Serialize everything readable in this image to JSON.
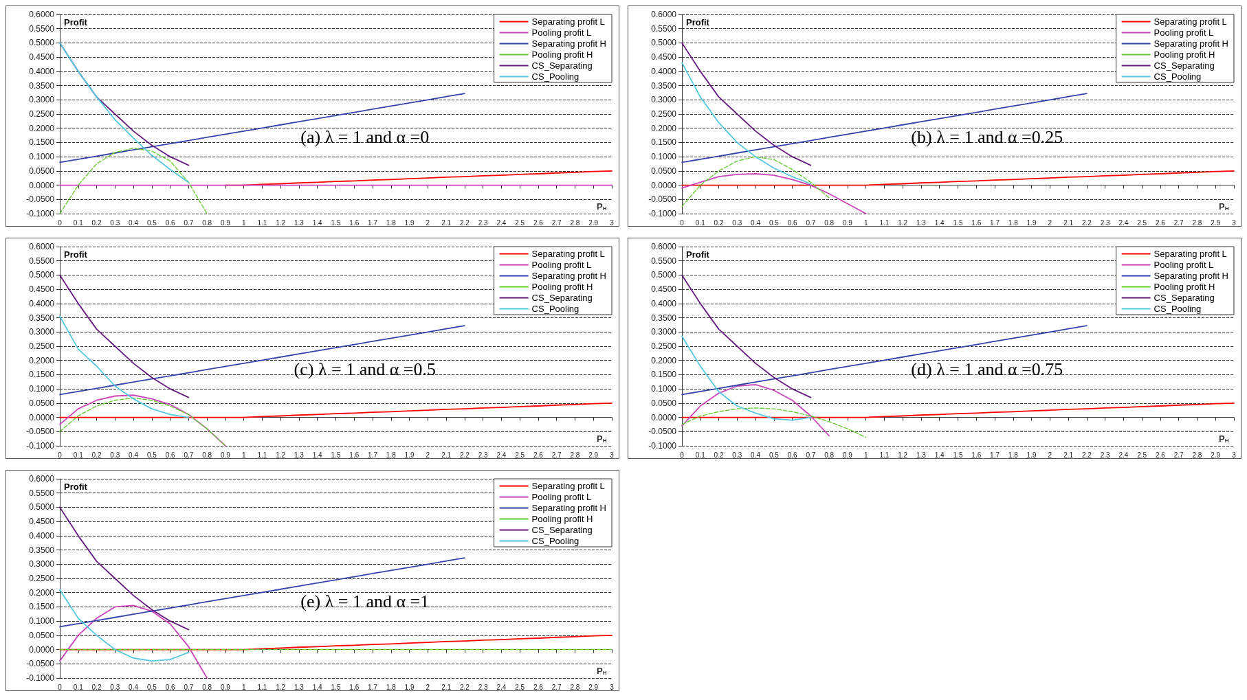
{
  "chart_data": [
    {
      "type": "line",
      "title": "(a) λ = 1 and α =0",
      "xlabel": "P$_{H}$",
      "ylabel": "Profit",
      "grid": "y",
      "legend": "top right",
      "marker": "none",
      "ylim": [
        -0.1,
        0.6
      ],
      "yticks": [
        {
          "value": -0.1,
          "label": "-0.1000"
        },
        {
          "value": -0.05,
          "label": "-0.0500"
        },
        {
          "value": 0,
          "label": "0.0000"
        },
        {
          "value": 0.05,
          "label": "0.0500"
        },
        {
          "value": 0.1,
          "label": "0.1000"
        },
        {
          "value": 0.15,
          "label": "0.1500"
        },
        {
          "value": 0.2,
          "label": "0.2000"
        },
        {
          "value": 0.25,
          "label": "0.2500"
        },
        {
          "value": 0.3,
          "label": "0.3000"
        },
        {
          "value": 0.35,
          "label": "0.3500"
        },
        {
          "value": 0.4,
          "label": "0.4000"
        },
        {
          "value": 0.45,
          "label": "0.4500"
        },
        {
          "value": 0.5,
          "label": "0.5000"
        },
        {
          "value": 0.55,
          "label": "0.5500"
        },
        {
          "value": 0.6,
          "label": "0.6000"
        }
      ],
      "categories": [
        "0",
        "0.1",
        "0.2",
        "0.3",
        "0.4",
        "0.5",
        "0.6",
        "0.7",
        "0.8",
        "0.9",
        "1",
        "1.1",
        "1.2",
        "1.3",
        "1.4",
        "1.5",
        "1.6",
        "1.7",
        "1.8",
        "1.9",
        "2",
        "2.1",
        "2.2",
        "2.3",
        "2.4",
        "2.5",
        "2.6",
        "2.7",
        "2.8",
        "2.9",
        "3"
      ],
      "series": [
        {
          "name": "Separating profit L",
          "color": "#ff0000",
          "values": [
            null,
            null,
            null,
            null,
            null,
            null,
            null,
            null,
            null,
            0,
            0,
            0.003,
            0.005,
            0.008,
            0.01,
            0.013,
            0.015,
            0.018,
            0.02,
            0.023,
            0.025,
            0.028,
            0.03,
            0.033,
            0.035,
            0.038,
            0.04,
            0.043,
            0.045,
            0.048,
            0.05
          ]
        },
        {
          "name": "Pooling profit L",
          "color": "#cc44bb",
          "values": [
            0,
            0,
            0,
            0,
            0,
            0,
            0,
            0,
            0,
            0,
            0,
            0,
            0,
            0,
            0,
            0,
            0,
            0,
            0,
            0,
            0,
            0,
            0,
            0,
            0,
            0,
            0,
            0,
            0,
            0,
            0
          ]
        },
        {
          "name": "Separating profit H",
          "color": "#3344aa",
          "values": [
            0.08,
            0.091,
            0.102,
            0.113,
            0.124,
            0.135,
            0.146,
            0.157,
            0.168,
            0.179,
            0.19,
            0.201,
            0.212,
            0.223,
            0.234,
            0.245,
            0.256,
            0.267,
            0.278,
            0.289,
            0.3,
            0.311,
            0.322,
            null,
            null,
            null,
            null,
            null,
            null,
            null,
            null
          ]
        },
        {
          "name": "Pooling profit H",
          "color": "#66cc33",
          "line_style": "dashed",
          "values": [
            -0.1,
            0,
            0.075,
            0.115,
            0.13,
            0.12,
            0.085,
            0.01,
            -0.1,
            null,
            null,
            null,
            null,
            null,
            null,
            null,
            null,
            null,
            null,
            null,
            null,
            null,
            null,
            null,
            null,
            null,
            null,
            null,
            null,
            null,
            null
          ]
        },
        {
          "name": "CS_Separating",
          "color": "#661a80",
          "values": [
            0.5,
            0.4,
            0.31,
            0.25,
            0.19,
            0.14,
            0.1,
            0.07,
            null,
            null,
            null,
            null,
            null,
            null,
            null,
            null,
            null,
            null,
            null,
            null,
            null,
            null,
            null,
            null,
            null,
            null,
            null,
            null,
            null,
            null,
            null
          ]
        },
        {
          "name": "CS_Pooling",
          "color": "#55c8e0",
          "values": [
            0.5,
            0.4,
            0.31,
            0.23,
            0.165,
            0.105,
            0.055,
            0.01,
            null,
            null,
            null,
            null,
            null,
            null,
            null,
            null,
            null,
            null,
            null,
            null,
            null,
            null,
            null,
            null,
            null,
            null,
            null,
            null,
            null,
            null,
            null
          ]
        }
      ]
    },
    {
      "type": "line",
      "title": "(b) λ = 1 and α =0.25",
      "xlabel": "P$_{H}$",
      "ylabel": "Profit",
      "grid": "y",
      "legend": "top right",
      "marker": "none",
      "ylim": [
        -0.1,
        0.6
      ],
      "yticks": [
        {
          "value": -0.1,
          "label": "-0.1000"
        },
        {
          "value": -0.05,
          "label": "-0.0500"
        },
        {
          "value": 0,
          "label": "0.0000"
        },
        {
          "value": 0.05,
          "label": "0.0500"
        },
        {
          "value": 0.1,
          "label": "0.1000"
        },
        {
          "value": 0.15,
          "label": "0.1500"
        },
        {
          "value": 0.2,
          "label": "0.2000"
        },
        {
          "value": 0.25,
          "label": "0.2500"
        },
        {
          "value": 0.3,
          "label": "0.3000"
        },
        {
          "value": 0.35,
          "label": "0.3500"
        },
        {
          "value": 0.4,
          "label": "0.4000"
        },
        {
          "value": 0.45,
          "label": "0.4500"
        },
        {
          "value": 0.5,
          "label": "0.5000"
        },
        {
          "value": 0.55,
          "label": "0.5500"
        },
        {
          "value": 0.6,
          "label": "0.6000"
        }
      ],
      "categories": [
        "0",
        "0.1",
        "0.2",
        "0.3",
        "0.4",
        "0.5",
        "0.6",
        "0.7",
        "0.8",
        "0.9",
        "1",
        "1.1",
        "1.2",
        "1.3",
        "1.4",
        "1.5",
        "1.6",
        "1.7",
        "1.8",
        "1.9",
        "2",
        "2.1",
        "2.2",
        "2.3",
        "2.4",
        "2.5",
        "2.6",
        "2.7",
        "2.8",
        "2.9",
        "3"
      ],
      "series": [
        {
          "name": "Separating profit L",
          "color": "#ff0000",
          "values": [
            0,
            0,
            0,
            0,
            0,
            0,
            0,
            0,
            0,
            0,
            0,
            0.003,
            0.005,
            0.008,
            0.01,
            0.013,
            0.015,
            0.018,
            0.02,
            0.023,
            0.025,
            0.028,
            0.03,
            0.033,
            0.035,
            0.038,
            0.04,
            0.043,
            0.045,
            0.048,
            0.05
          ]
        },
        {
          "name": "Pooling profit L",
          "color": "#cc44bb",
          "values": [
            -0.01,
            0.01,
            0.03,
            0.038,
            0.04,
            0.035,
            0.02,
            0,
            -0.03,
            -0.065,
            -0.1,
            null,
            null,
            null,
            null,
            null,
            null,
            null,
            null,
            null,
            null,
            null,
            null,
            null,
            null,
            null,
            null,
            null,
            null,
            null,
            null
          ]
        },
        {
          "name": "Separating profit H",
          "color": "#3344aa",
          "values": [
            0.08,
            0.091,
            0.102,
            0.113,
            0.124,
            0.135,
            0.146,
            0.157,
            0.168,
            0.179,
            0.19,
            0.201,
            0.212,
            0.223,
            0.234,
            0.245,
            0.256,
            0.267,
            0.278,
            0.289,
            0.3,
            0.311,
            0.322,
            null,
            null,
            null,
            null,
            null,
            null,
            null,
            null
          ]
        },
        {
          "name": "Pooling profit H",
          "color": "#66cc33",
          "line_style": "dashed",
          "values": [
            -0.075,
            0,
            0.05,
            0.085,
            0.1,
            0.09,
            0.055,
            0.01,
            -0.045,
            null,
            null,
            null,
            null,
            null,
            null,
            null,
            null,
            null,
            null,
            null,
            null,
            null,
            null,
            null,
            null,
            null,
            null,
            null,
            null,
            null,
            null
          ]
        },
        {
          "name": "CS_Separating",
          "color": "#661a80",
          "values": [
            0.5,
            0.4,
            0.31,
            0.25,
            0.19,
            0.14,
            0.1,
            0.07,
            null,
            null,
            null,
            null,
            null,
            null,
            null,
            null,
            null,
            null,
            null,
            null,
            null,
            null,
            null,
            null,
            null,
            null,
            null,
            null,
            null,
            null,
            null
          ]
        },
        {
          "name": "CS_Pooling",
          "color": "#55c8e0",
          "values": [
            0.43,
            0.31,
            0.22,
            0.15,
            0.1,
            0.06,
            0.03,
            0.005,
            null,
            null,
            null,
            null,
            null,
            null,
            null,
            null,
            null,
            null,
            null,
            null,
            null,
            null,
            null,
            null,
            null,
            null,
            null,
            null,
            null,
            null,
            null
          ]
        }
      ]
    },
    {
      "type": "line",
      "title": "(c) λ = 1 and α =0.5",
      "xlabel": "P$_{H}$",
      "ylabel": "Profit",
      "grid": "y",
      "legend": "top right",
      "marker": "none",
      "ylim": [
        -0.1,
        0.6
      ],
      "yticks": [
        {
          "value": -0.1,
          "label": "-0.1000"
        },
        {
          "value": -0.05,
          "label": "-0.0500"
        },
        {
          "value": 0,
          "label": "0.0000"
        },
        {
          "value": 0.05,
          "label": "0.0500"
        },
        {
          "value": 0.1,
          "label": "0.1000"
        },
        {
          "value": 0.15,
          "label": "0.1500"
        },
        {
          "value": 0.2,
          "label": "0.2000"
        },
        {
          "value": 0.25,
          "label": "0.2500"
        },
        {
          "value": 0.3,
          "label": "0.3000"
        },
        {
          "value": 0.35,
          "label": "0.3500"
        },
        {
          "value": 0.4,
          "label": "0.4000"
        },
        {
          "value": 0.45,
          "label": "0.4500"
        },
        {
          "value": 0.5,
          "label": "0.5000"
        },
        {
          "value": 0.55,
          "label": "0.5500"
        },
        {
          "value": 0.6,
          "label": "0.6000"
        }
      ],
      "categories": [
        "0",
        "0.1",
        "0.2",
        "0.3",
        "0.4",
        "0.5",
        "0.6",
        "0.7",
        "0.8",
        "0.9",
        "1",
        "1.1",
        "1.2",
        "1.3",
        "1.4",
        "1.5",
        "1.6",
        "1.7",
        "1.8",
        "1.9",
        "2",
        "2.1",
        "2.2",
        "2.3",
        "2.4",
        "2.5",
        "2.6",
        "2.7",
        "2.8",
        "2.9",
        "3"
      ],
      "series": [
        {
          "name": "Separating profit L",
          "color": "#ff0000",
          "values": [
            0,
            0,
            0,
            0,
            0,
            0,
            0,
            0,
            0,
            0,
            0,
            0.003,
            0.005,
            0.008,
            0.01,
            0.013,
            0.015,
            0.018,
            0.02,
            0.023,
            0.025,
            0.028,
            0.03,
            0.033,
            0.035,
            0.038,
            0.04,
            0.043,
            0.045,
            0.048,
            0.05
          ]
        },
        {
          "name": "Pooling profit L",
          "color": "#cc44bb",
          "values": [
            -0.025,
            0.03,
            0.06,
            0.075,
            0.078,
            0.065,
            0.045,
            0.01,
            -0.04,
            -0.1,
            null,
            null,
            null,
            null,
            null,
            null,
            null,
            null,
            null,
            null,
            null,
            null,
            null,
            null,
            null,
            null,
            null,
            null,
            null,
            null,
            null
          ]
        },
        {
          "name": "Separating profit H",
          "color": "#3344aa",
          "values": [
            0.08,
            0.091,
            0.102,
            0.113,
            0.124,
            0.135,
            0.146,
            0.157,
            0.168,
            0.179,
            0.19,
            0.201,
            0.212,
            0.223,
            0.234,
            0.245,
            0.256,
            0.267,
            0.278,
            0.289,
            0.3,
            0.311,
            0.322,
            null,
            null,
            null,
            null,
            null,
            null,
            null,
            null
          ]
        },
        {
          "name": "Pooling profit H",
          "color": "#66cc33",
          "line_style": "dashed",
          "values": [
            -0.05,
            0.005,
            0.04,
            0.06,
            0.068,
            0.06,
            0.04,
            0.01,
            -0.04,
            -0.1,
            null,
            null,
            null,
            null,
            null,
            null,
            null,
            null,
            null,
            null,
            null,
            null,
            null,
            null,
            null,
            null,
            null,
            null,
            null,
            null,
            null
          ]
        },
        {
          "name": "CS_Separating",
          "color": "#661a80",
          "values": [
            0.5,
            0.4,
            0.31,
            0.25,
            0.19,
            0.14,
            0.1,
            0.07,
            null,
            null,
            null,
            null,
            null,
            null,
            null,
            null,
            null,
            null,
            null,
            null,
            null,
            null,
            null,
            null,
            null,
            null,
            null,
            null,
            null,
            null,
            null
          ]
        },
        {
          "name": "CS_Pooling",
          "color": "#55c8e0",
          "values": [
            0.355,
            0.24,
            0.18,
            0.11,
            0.065,
            0.03,
            0.01,
            0,
            null,
            null,
            null,
            null,
            null,
            null,
            null,
            null,
            null,
            null,
            null,
            null,
            null,
            null,
            null,
            null,
            null,
            null,
            null,
            null,
            null,
            null,
            null
          ]
        }
      ]
    },
    {
      "type": "line",
      "title": "(d) λ = 1 and α =0.75",
      "xlabel": "P$_{H}$",
      "ylabel": "Profit",
      "grid": "y",
      "legend": "top right",
      "marker": "none",
      "ylim": [
        -0.1,
        0.6
      ],
      "yticks": [
        {
          "value": -0.1,
          "label": "-0.1000"
        },
        {
          "value": -0.05,
          "label": "-0.0500"
        },
        {
          "value": 0,
          "label": "0.0000"
        },
        {
          "value": 0.05,
          "label": "0.0500"
        },
        {
          "value": 0.1,
          "label": "0.1000"
        },
        {
          "value": 0.15,
          "label": "0.1500"
        },
        {
          "value": 0.2,
          "label": "0.2000"
        },
        {
          "value": 0.25,
          "label": "0.2500"
        },
        {
          "value": 0.3,
          "label": "0.3000"
        },
        {
          "value": 0.35,
          "label": "0.3500"
        },
        {
          "value": 0.4,
          "label": "0.4000"
        },
        {
          "value": 0.45,
          "label": "0.4500"
        },
        {
          "value": 0.5,
          "label": "0.5000"
        },
        {
          "value": 0.55,
          "label": "0.5500"
        },
        {
          "value": 0.6,
          "label": "0.6000"
        }
      ],
      "categories": [
        "0",
        "0.1",
        "0.2",
        "0.3",
        "0.4",
        "0.5",
        "0.6",
        "0.7",
        "0.8",
        "0.9",
        "1",
        "1.1",
        "1.2",
        "1.3",
        "1.4",
        "1.5",
        "1.6",
        "1.7",
        "1.8",
        "1.9",
        "2",
        "2.1",
        "2.2",
        "2.3",
        "2.4",
        "2.5",
        "2.6",
        "2.7",
        "2.8",
        "2.9",
        "3"
      ],
      "series": [
        {
          "name": "Separating profit L",
          "color": "#ff0000",
          "values": [
            0,
            0,
            0,
            0,
            0,
            0,
            0,
            0,
            0,
            0,
            0,
            0.003,
            0.005,
            0.008,
            0.01,
            0.013,
            0.015,
            0.018,
            0.02,
            0.023,
            0.025,
            0.028,
            0.03,
            0.033,
            0.035,
            0.038,
            0.04,
            0.043,
            0.045,
            0.048,
            0.05
          ]
        },
        {
          "name": "Pooling profit L",
          "color": "#cc44bb",
          "values": [
            -0.03,
            0.04,
            0.085,
            0.11,
            0.115,
            0.095,
            0.06,
            0.005,
            -0.065,
            null,
            null,
            null,
            null,
            null,
            null,
            null,
            null,
            null,
            null,
            null,
            null,
            null,
            null,
            null,
            null,
            null,
            null,
            null,
            null,
            null,
            null
          ]
        },
        {
          "name": "Separating profit H",
          "color": "#3344aa",
          "values": [
            0.08,
            0.091,
            0.102,
            0.113,
            0.124,
            0.135,
            0.146,
            0.157,
            0.168,
            0.179,
            0.19,
            0.201,
            0.212,
            0.223,
            0.234,
            0.245,
            0.256,
            0.267,
            0.278,
            0.289,
            0.3,
            0.311,
            0.322,
            null,
            null,
            null,
            null,
            null,
            null,
            null,
            null
          ]
        },
        {
          "name": "Pooling profit H",
          "color": "#66cc33",
          "line_style": "dashed",
          "values": [
            -0.025,
            0.005,
            0.02,
            0.03,
            0.033,
            0.03,
            0.02,
            0.005,
            -0.015,
            -0.04,
            -0.07,
            null,
            null,
            null,
            null,
            null,
            null,
            null,
            null,
            null,
            null,
            null,
            null,
            null,
            null,
            null,
            null,
            null,
            null,
            null,
            null
          ]
        },
        {
          "name": "CS_Separating",
          "color": "#661a80",
          "values": [
            0.5,
            0.4,
            0.31,
            0.25,
            0.19,
            0.14,
            0.1,
            0.07,
            null,
            null,
            null,
            null,
            null,
            null,
            null,
            null,
            null,
            null,
            null,
            null,
            null,
            null,
            null,
            null,
            null,
            null,
            null,
            null,
            null,
            null,
            null
          ]
        },
        {
          "name": "CS_Pooling",
          "color": "#55c8e0",
          "values": [
            0.285,
            0.18,
            0.09,
            0.04,
            0.015,
            -0.005,
            -0.01,
            0,
            null,
            null,
            null,
            null,
            null,
            null,
            null,
            null,
            null,
            null,
            null,
            null,
            null,
            null,
            null,
            null,
            null,
            null,
            null,
            null,
            null,
            null,
            null
          ]
        }
      ]
    },
    {
      "type": "line",
      "title": "(e) λ = 1 and α =1",
      "xlabel": "P$_{H}$",
      "ylabel": "Profit",
      "grid": "y",
      "legend": "top right",
      "marker": "none",
      "ylim": [
        -0.1,
        0.6
      ],
      "yticks": [
        {
          "value": -0.1,
          "label": "-0.1000"
        },
        {
          "value": -0.05,
          "label": "-0.0500"
        },
        {
          "value": 0,
          "label": "0.0000"
        },
        {
          "value": 0.05,
          "label": "0.0500"
        },
        {
          "value": 0.1,
          "label": "0.1000"
        },
        {
          "value": 0.15,
          "label": "0.1500"
        },
        {
          "value": 0.2,
          "label": "0.2000"
        },
        {
          "value": 0.25,
          "label": "0.2500"
        },
        {
          "value": 0.3,
          "label": "0.3000"
        },
        {
          "value": 0.35,
          "label": "0.3500"
        },
        {
          "value": 0.4,
          "label": "0.4000"
        },
        {
          "value": 0.45,
          "label": "0.4500"
        },
        {
          "value": 0.5,
          "label": "0.5000"
        },
        {
          "value": 0.55,
          "label": "0.5500"
        },
        {
          "value": 0.6,
          "label": "0.6000"
        }
      ],
      "categories": [
        "0",
        "0.1",
        "0.2",
        "0.3",
        "0.4",
        "0.5",
        "0.6",
        "0.7",
        "0.8",
        "0.9",
        "1",
        "1.1",
        "1.2",
        "1.3",
        "1.4",
        "1.5",
        "1.6",
        "1.7",
        "1.8",
        "1.9",
        "2",
        "2.1",
        "2.2",
        "2.3",
        "2.4",
        "2.5",
        "2.6",
        "2.7",
        "2.8",
        "2.9",
        "3"
      ],
      "series": [
        {
          "name": "Separating profit L",
          "color": "#ff0000",
          "values": [
            0,
            0,
            0,
            0,
            0,
            0,
            0,
            0,
            0,
            0,
            0,
            0.003,
            0.005,
            0.008,
            0.01,
            0.013,
            0.015,
            0.018,
            0.02,
            0.023,
            0.025,
            0.028,
            0.03,
            0.033,
            0.035,
            0.038,
            0.04,
            0.043,
            0.045,
            0.048,
            0.05
          ]
        },
        {
          "name": "Pooling profit L",
          "color": "#cc44bb",
          "values": [
            -0.04,
            0.05,
            0.11,
            0.15,
            0.155,
            0.135,
            0.09,
            0.01,
            -0.1,
            null,
            null,
            null,
            null,
            null,
            null,
            null,
            null,
            null,
            null,
            null,
            null,
            null,
            null,
            null,
            null,
            null,
            null,
            null,
            null,
            null,
            null
          ]
        },
        {
          "name": "Separating profit H",
          "color": "#3344aa",
          "values": [
            0.08,
            0.091,
            0.102,
            0.113,
            0.124,
            0.135,
            0.146,
            0.157,
            0.168,
            0.179,
            0.19,
            0.201,
            0.212,
            0.223,
            0.234,
            0.245,
            0.256,
            0.267,
            0.278,
            0.289,
            0.3,
            0.311,
            0.322,
            null,
            null,
            null,
            null,
            null,
            null,
            null,
            null
          ]
        },
        {
          "name": "Pooling profit H",
          "color": "#66cc33",
          "line_style": "dashed",
          "values": [
            0,
            0,
            0,
            0,
            0,
            0,
            0,
            0,
            0,
            0,
            0,
            0,
            0,
            0,
            0,
            0,
            0,
            0,
            0,
            0,
            0,
            0,
            0,
            0,
            0,
            0,
            0,
            0,
            0,
            0,
            0
          ]
        },
        {
          "name": "CS_Separating",
          "color": "#661a80",
          "values": [
            0.5,
            0.4,
            0.31,
            0.25,
            0.19,
            0.14,
            0.1,
            0.07,
            null,
            null,
            null,
            null,
            null,
            null,
            null,
            null,
            null,
            null,
            null,
            null,
            null,
            null,
            null,
            null,
            null,
            null,
            null,
            null,
            null,
            null,
            null
          ]
        },
        {
          "name": "CS_Pooling",
          "color": "#55c8e0",
          "values": [
            0.21,
            0.11,
            0.05,
            0,
            -0.03,
            -0.04,
            -0.035,
            -0.01,
            null,
            null,
            null,
            null,
            null,
            null,
            null,
            null,
            null,
            null,
            null,
            null,
            null,
            null,
            null,
            null,
            null,
            null,
            null,
            null,
            null,
            null,
            null
          ]
        }
      ]
    }
  ]
}
